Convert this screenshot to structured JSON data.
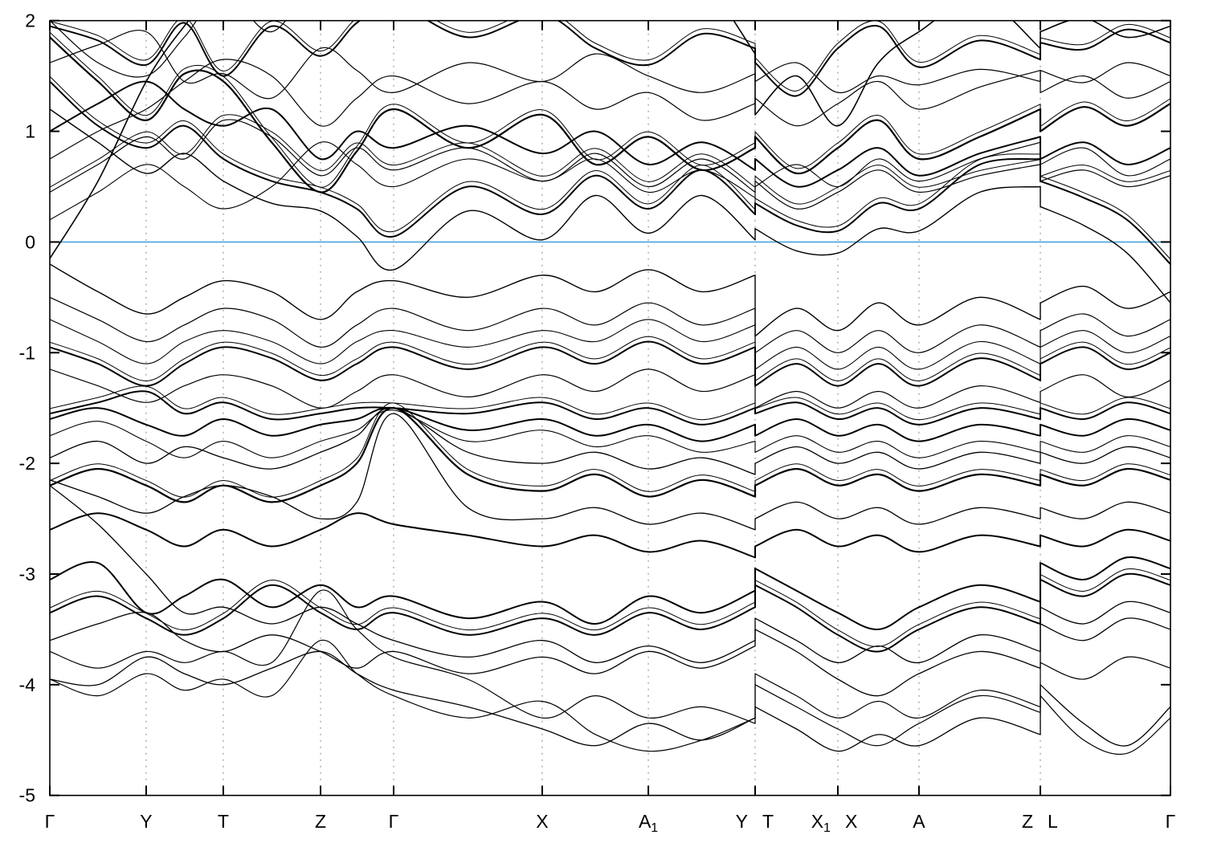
{
  "figure": {
    "background_color": "#ffffff",
    "band_color": "#000000",
    "fermi_color": "#5bacdd",
    "grid_color": "#9a9a9a"
  },
  "chart_data": {
    "type": "line",
    "title": "",
    "xlabel": "",
    "ylabel": "",
    "ylim": [
      -5,
      2
    ],
    "grid": "vertical-dotted-at-kpoints",
    "legend": "none",
    "yticks": [
      "2",
      "1",
      "0",
      "-1",
      "-2",
      "-3",
      "-4",
      "-5"
    ],
    "ytick_values": [
      2,
      1,
      0,
      -1,
      -2,
      -3,
      -4,
      -5
    ],
    "xticks": [
      {
        "x": 0.0,
        "labels": [
          {
            "text": "Γ"
          }
        ]
      },
      {
        "x": 0.086,
        "labels": [
          {
            "text": "Y"
          }
        ]
      },
      {
        "x": 0.1548,
        "labels": [
          {
            "text": "T"
          }
        ]
      },
      {
        "x": 0.2416,
        "labels": [
          {
            "text": "Z"
          }
        ]
      },
      {
        "x": 0.3068,
        "labels": [
          {
            "text": "Γ"
          }
        ]
      },
      {
        "x": 0.4394,
        "labels": [
          {
            "text": "X"
          }
        ]
      },
      {
        "x": 0.5341,
        "labels": [
          {
            "text": "A",
            "sub": "1"
          }
        ]
      },
      {
        "x": 0.6294,
        "labels": [
          {
            "text": "Y"
          },
          {
            "text": "T"
          }
        ]
      },
      {
        "x": 0.7032,
        "labels": [
          {
            "text": "X",
            "sub": "1"
          },
          {
            "text": "X"
          }
        ]
      },
      {
        "x": 0.7756,
        "labels": [
          {
            "text": "A"
          }
        ]
      },
      {
        "x": 0.8839,
        "labels": [
          {
            "text": "Z"
          },
          {
            "text": "L"
          }
        ]
      },
      {
        "x": 1.0,
        "labels": [
          {
            "text": "Γ"
          }
        ]
      }
    ],
    "panel_breaks": [
      0.6294,
      0.8839
    ],
    "fermi_level": {
      "y": 0.0,
      "color": "#5bacdd"
    },
    "x": [
      0,
      0.043,
      0.086,
      0.12,
      0.155,
      0.198,
      0.2416,
      0.274,
      0.3068,
      0.373,
      0.4394,
      0.487,
      0.5341,
      0.582,
      0.6294,
      0.6294,
      0.6663,
      0.7032,
      0.7394,
      0.7756,
      0.8298,
      0.8839,
      0.8839,
      0.9226,
      0.9613,
      1.0
    ],
    "bands": [
      {
        "w": 1.6,
        "d": 0,
        "e": [
          -0.15,
          0.55,
          1.45,
          1.95,
          2.35,
          2.6,
          2.7,
          2.75,
          2.8,
          2.8,
          2.8,
          2.8,
          2.8,
          2.4,
          1.7,
          1.15,
          1.5,
          1.05,
          1.62,
          1.9,
          2.2,
          1.75,
          1.9,
          2.02,
          1.85,
          1.95
        ]
      },
      {
        "w": 2,
        "d": 1,
        "e": [
          1.95,
          1.82,
          1.6,
          1.98,
          1.5,
          1.95,
          1.68,
          1.98,
          2.15,
          1.85,
          2.05,
          1.75,
          1.6,
          1.88,
          1.75,
          1.62,
          1.32,
          1.75,
          1.95,
          1.58,
          1.82,
          1.65,
          1.8,
          1.74,
          1.92,
          1.8
        ]
      },
      {
        "w": 1.2,
        "d": 0,
        "e": [
          1.62,
          1.78,
          1.9,
          1.45,
          1.52,
          1.3,
          1.75,
          1.55,
          1.35,
          1.62,
          1.45,
          1.7,
          1.5,
          1.35,
          1.52,
          1.45,
          1.62,
          1.35,
          1.5,
          1.42,
          1.56,
          1.45,
          1.55,
          1.44,
          1.62,
          1.5
        ]
      },
      {
        "w": 2.2,
        "d": 1,
        "e": [
          1.85,
          1.45,
          1.1,
          1.52,
          1.45,
          0.9,
          0.45,
          0.82,
          1.2,
          0.85,
          1.15,
          0.7,
          0.95,
          0.65,
          0.85,
          0.95,
          0.62,
          0.85,
          1.1,
          0.75,
          0.95,
          1.2,
          1.0,
          1.22,
          1.05,
          1.25
        ]
      },
      {
        "w": 1.2,
        "d": 0,
        "e": [
          2.0,
          1.62,
          1.5,
          1.85,
          2.25,
          1.9,
          2.4,
          2.1,
          2.3,
          2.05,
          2.25,
          2.0,
          2.2,
          2.0,
          2.15,
          2.1,
          2.3,
          2.05,
          2.25,
          2.05,
          2.2,
          2.1,
          2.2,
          2.1,
          2.25,
          2.15
        ]
      },
      {
        "w": 1.4,
        "d": 0,
        "e": [
          1.2,
          0.9,
          0.62,
          0.8,
          0.55,
          0.35,
          0.28,
          0.05,
          -0.25,
          0.28,
          0.02,
          0.42,
          0.08,
          0.42,
          0.02,
          0.12,
          -0.08,
          -0.1,
          0.12,
          0.1,
          0.45,
          0.5,
          0.32,
          0.15,
          -0.1,
          -0.55
        ]
      },
      {
        "w": 2,
        "d": 1,
        "e": [
          1.45,
          1.05,
          0.85,
          1.05,
          0.75,
          0.55,
          0.45,
          0.3,
          0.05,
          0.5,
          0.25,
          0.6,
          0.3,
          0.65,
          0.25,
          0.35,
          0.15,
          0.1,
          0.35,
          0.3,
          0.7,
          0.75,
          0.55,
          0.4,
          0.2,
          -0.2
        ]
      },
      {
        "w": 1.2,
        "d": 0,
        "e": [
          0.75,
          1.0,
          1.2,
          1.45,
          1.65,
          1.5,
          1.05,
          1.3,
          1.5,
          1.25,
          1.45,
          1.2,
          1.35,
          1.1,
          1.25,
          1.3,
          1.05,
          1.25,
          1.45,
          1.2,
          1.4,
          1.55,
          1.35,
          1.5,
          1.3,
          1.45
        ]
      },
      {
        "w": 2,
        "d": 0,
        "e": [
          1.0,
          1.25,
          1.45,
          1.2,
          1.05,
          1.2,
          0.75,
          1.0,
          0.85,
          1.05,
          0.8,
          1.0,
          0.7,
          0.9,
          0.65,
          0.75,
          0.5,
          0.65,
          0.85,
          0.6,
          0.8,
          0.95,
          0.75,
          0.9,
          0.7,
          0.85
        ]
      },
      {
        "w": 1.2,
        "d": 1,
        "e": [
          0.45,
          0.7,
          0.95,
          0.75,
          1.1,
          0.95,
          0.6,
          0.85,
          0.65,
          0.85,
          0.55,
          0.8,
          0.5,
          0.75,
          0.45,
          0.55,
          0.3,
          0.45,
          0.65,
          0.45,
          0.6,
          0.7,
          0.55,
          0.65,
          0.5,
          0.6
        ]
      },
      {
        "w": 1.1,
        "d": 0,
        "e": [
          0.2,
          0.45,
          0.7,
          0.5,
          0.3,
          0.5,
          0.9,
          0.7,
          0.5,
          0.75,
          0.55,
          0.75,
          0.45,
          0.65,
          0.4,
          0.5,
          0.7,
          0.5,
          0.75,
          0.55,
          0.75,
          0.9,
          0.7,
          0.85,
          0.6,
          0.75
        ]
      },
      {
        "w": 1.4,
        "d": 0,
        "e": [
          -0.2,
          -0.45,
          -0.65,
          -0.5,
          -0.35,
          -0.45,
          -0.7,
          -0.45,
          -0.35,
          -0.5,
          -0.3,
          -0.45,
          -0.25,
          -0.45,
          -0.3,
          -0.85,
          -0.6,
          -0.8,
          -0.55,
          -0.75,
          -0.5,
          -0.7,
          -0.55,
          -0.4,
          -0.6,
          -0.45
        ]
      },
      {
        "w": 1.2,
        "d": 0,
        "e": [
          -0.5,
          -0.7,
          -0.9,
          -0.75,
          -0.6,
          -0.7,
          -0.95,
          -0.75,
          -0.6,
          -0.8,
          -0.6,
          -0.75,
          -0.55,
          -0.75,
          -0.6,
          -1.0,
          -0.8,
          -1.0,
          -0.8,
          -1.0,
          -0.75,
          -0.95,
          -0.8,
          -0.65,
          -0.85,
          -0.7
        ]
      },
      {
        "w": 1.1,
        "d": 0,
        "e": [
          -0.7,
          -0.9,
          -1.1,
          -0.9,
          -0.8,
          -0.9,
          -1.1,
          -0.9,
          -0.8,
          -0.95,
          -0.8,
          -0.9,
          -0.7,
          -0.9,
          -0.75,
          -1.15,
          -0.95,
          -1.15,
          -0.95,
          -1.15,
          -0.9,
          -1.1,
          -0.95,
          -0.8,
          -1.0,
          -0.85
        ]
      },
      {
        "w": 2,
        "d": 1,
        "e": [
          -0.95,
          -1.1,
          -1.3,
          -1.1,
          -0.95,
          -1.05,
          -1.25,
          -1.1,
          -0.95,
          -1.15,
          -0.95,
          -1.1,
          -0.9,
          -1.1,
          -0.95,
          -1.3,
          -1.1,
          -1.3,
          -1.1,
          -1.3,
          -1.05,
          -1.25,
          -1.1,
          -0.95,
          -1.15,
          -1.0
        ]
      },
      {
        "w": 1.2,
        "d": 0,
        "e": [
          -1.15,
          -1.3,
          -1.45,
          -1.3,
          -1.2,
          -1.3,
          -1.5,
          -1.35,
          -1.2,
          -1.4,
          -1.2,
          -1.35,
          -1.15,
          -1.35,
          -1.2,
          -1.5,
          -1.35,
          -1.5,
          -1.35,
          -1.5,
          -1.3,
          -1.45,
          -1.35,
          -1.2,
          -1.4,
          -1.25
        ]
      },
      {
        "w": 2,
        "d": 1,
        "e": [
          -1.55,
          -1.45,
          -1.35,
          -1.55,
          -1.45,
          -1.6,
          -1.55,
          -1.5,
          -1.5,
          -1.55,
          -1.45,
          -1.6,
          -1.5,
          -1.65,
          -1.5,
          -1.55,
          -1.45,
          -1.6,
          -1.5,
          -1.65,
          -1.5,
          -1.6,
          -1.5,
          -1.6,
          -1.45,
          -1.55
        ]
      },
      {
        "w": 2,
        "d": 0,
        "e": [
          -1.6,
          -1.5,
          -1.65,
          -1.75,
          -1.6,
          -1.75,
          -1.65,
          -1.6,
          -1.5,
          -1.7,
          -1.6,
          -1.75,
          -1.65,
          -1.8,
          -1.65,
          -1.75,
          -1.6,
          -1.75,
          -1.65,
          -1.8,
          -1.65,
          -1.75,
          -1.65,
          -1.75,
          -1.6,
          -1.7
        ]
      },
      {
        "w": 1.1,
        "d": 0,
        "e": [
          -1.75,
          -1.62,
          -1.8,
          -1.95,
          -1.8,
          -1.95,
          -1.8,
          -1.7,
          -1.52,
          -1.8,
          -1.7,
          -1.85,
          -1.75,
          -1.9,
          -1.8,
          -1.9,
          -1.75,
          -1.9,
          -1.8,
          -1.95,
          -1.8,
          -1.9,
          -1.8,
          -1.9,
          -1.75,
          -1.85
        ]
      },
      {
        "w": 1.3,
        "d": 0,
        "e": [
          -1.95,
          -1.8,
          -2.0,
          -1.85,
          -1.95,
          -2.05,
          -1.9,
          -1.75,
          -1.5,
          -1.9,
          -2.0,
          -1.9,
          -2.05,
          -1.95,
          -2.1,
          -2.0,
          -1.85,
          -2.0,
          -1.9,
          -2.05,
          -1.9,
          -2.0,
          -1.9,
          -2.0,
          -1.85,
          -1.95
        ]
      },
      {
        "w": 2.2,
        "d": 1,
        "e": [
          -2.2,
          -2.05,
          -2.2,
          -2.35,
          -2.2,
          -2.35,
          -2.2,
          -2.0,
          -1.5,
          -2.1,
          -2.25,
          -2.1,
          -2.3,
          -2.15,
          -2.3,
          -2.2,
          -2.05,
          -2.2,
          -2.1,
          -2.25,
          -2.1,
          -2.2,
          -2.1,
          -2.2,
          -2.05,
          -2.15
        ]
      },
      {
        "w": 1.3,
        "d": 0,
        "e": [
          -2.15,
          -2.3,
          -2.45,
          -2.3,
          -2.2,
          -2.3,
          -2.5,
          -2.35,
          -1.55,
          -2.4,
          -2.5,
          -2.4,
          -2.55,
          -2.45,
          -2.6,
          -2.5,
          -2.35,
          -2.5,
          -2.4,
          -2.55,
          -2.4,
          -2.5,
          -2.4,
          -2.5,
          -2.35,
          -2.45
        ]
      },
      {
        "w": 2,
        "d": 0,
        "e": [
          -2.6,
          -2.45,
          -2.6,
          -2.75,
          -2.6,
          -2.75,
          -2.6,
          -2.45,
          -2.55,
          -2.65,
          -2.75,
          -2.65,
          -2.8,
          -2.7,
          -2.85,
          -2.75,
          -2.6,
          -2.75,
          -2.65,
          -2.8,
          -2.65,
          -2.75,
          -2.65,
          -2.75,
          -2.6,
          -2.7
        ]
      },
      {
        "w": 2,
        "d": 1,
        "e": [
          -3.35,
          -3.2,
          -3.4,
          -3.55,
          -3.4,
          -3.1,
          -3.35,
          -3.5,
          -3.35,
          -3.55,
          -3.4,
          -3.55,
          -3.35,
          -3.5,
          -3.3,
          -3.1,
          -3.3,
          -3.55,
          -3.7,
          -3.5,
          -3.3,
          -3.45,
          -3.05,
          -3.2,
          -3.0,
          -3.1
        ]
      },
      {
        "w": 2,
        "d": 0,
        "e": [
          -3.05,
          -2.9,
          -3.35,
          -3.2,
          -3.05,
          -3.3,
          -3.1,
          -3.3,
          -3.2,
          -3.4,
          -3.25,
          -3.45,
          -3.2,
          -3.35,
          -3.15,
          -2.95,
          -3.15,
          -3.35,
          -3.5,
          -3.3,
          -3.1,
          -3.25,
          -2.9,
          -3.05,
          -2.85,
          -2.95
        ]
      },
      {
        "w": 1.3,
        "d": 0,
        "e": [
          -2.2,
          -2.55,
          -3.0,
          -3.35,
          -3.3,
          -3.45,
          -3.3,
          -3.45,
          -3.6,
          -3.75,
          -3.6,
          -3.8,
          -3.65,
          -3.8,
          -3.6,
          -3.4,
          -3.6,
          -3.8,
          -3.65,
          -3.8,
          -3.55,
          -3.7,
          -3.3,
          -3.45,
          -3.25,
          -3.35
        ]
      },
      {
        "w": 1.3,
        "d": 0,
        "e": [
          -3.6,
          -3.45,
          -3.35,
          -3.6,
          -3.7,
          -3.55,
          -3.7,
          -3.85,
          -3.7,
          -3.9,
          -3.75,
          -3.9,
          -3.7,
          -3.85,
          -3.65,
          -3.5,
          -3.7,
          -3.95,
          -4.1,
          -3.9,
          -3.7,
          -3.85,
          -3.45,
          -3.6,
          -3.4,
          -3.5
        ]
      },
      {
        "w": 1.2,
        "d": 0,
        "e": [
          -3.7,
          -3.85,
          -3.7,
          -3.8,
          -3.7,
          -3.8,
          -3.15,
          -3.5,
          -3.75,
          -3.95,
          -4.3,
          -4.1,
          -4.3,
          -4.2,
          -4.35,
          -4.0,
          -4.2,
          -4.4,
          -4.55,
          -4.35,
          -4.1,
          -4.25,
          -3.8,
          -3.95,
          -3.75,
          -3.85
        ]
      },
      {
        "w": 1.3,
        "d": 0,
        "e": [
          -3.95,
          -4.0,
          -3.75,
          -3.9,
          -4.0,
          -3.85,
          -3.7,
          -3.9,
          -4.05,
          -4.2,
          -4.4,
          -4.55,
          -4.35,
          -4.5,
          -4.3,
          -4.2,
          -4.4,
          -4.6,
          -4.45,
          -4.55,
          -4.3,
          -4.45,
          -4.0,
          -4.35,
          -4.55,
          -4.2
        ]
      },
      {
        "w": 1.2,
        "d": 0,
        "e": [
          -3.95,
          -4.1,
          -3.9,
          -4.05,
          -3.95,
          -4.1,
          -3.6,
          -3.9,
          -4.1,
          -4.3,
          -4.15,
          -4.45,
          -4.6,
          -4.5,
          -4.3,
          -3.9,
          -4.1,
          -4.3,
          -4.15,
          -4.3,
          -4.05,
          -4.2,
          -4.1,
          -4.5,
          -4.62,
          -4.3
        ]
      }
    ]
  }
}
